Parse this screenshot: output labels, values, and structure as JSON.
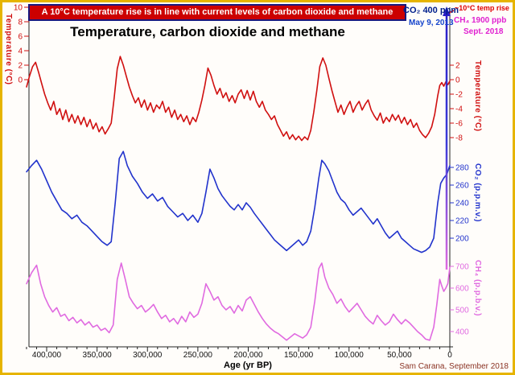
{
  "banner": {
    "text": "A 10°C temperature rise is in line with current levels of carbon dioxide and methane"
  },
  "title": "Temperature, carbon dioxide and methane",
  "annotations": {
    "co2_current": "CO₂ 400 ppm",
    "co2_date": "May 9, 2013",
    "temp_rise": "~10°C temp rise",
    "ch4_current": "CH₄ 1900 ppb",
    "ch4_date": "Sept. 2018",
    "credit": "Sam Carana, September 2018"
  },
  "colors": {
    "banner_bg": "#cc0000",
    "banner_border": "#18187e",
    "temperature": "#d01010",
    "co2": "#2233cc",
    "ch4": "#e06ae0",
    "axis": "#222222",
    "credit": "#8a3324",
    "arrow_top": "#2a1ec8",
    "arrow_bottom": "#e06ae0",
    "frame": "#e6b400"
  },
  "chart_data": {
    "type": "line",
    "title": "Temperature, carbon dioxide and methane",
    "x_axis": {
      "label": "Age (yr BP)",
      "unit": "yr BP",
      "range_kyr": [
        420,
        0
      ],
      "reversed": true,
      "tick_values_kyr": [
        400,
        350,
        300,
        250,
        200,
        150,
        100,
        50,
        0
      ],
      "tick_labels": [
        "400,000",
        "350,000",
        "300,000",
        "250,000",
        "200,000",
        "150,000",
        "100,000",
        "50,000",
        "0"
      ]
    },
    "left_axis": {
      "label": "Temperature (°C)",
      "ticks": [
        10,
        8,
        6,
        4,
        2,
        0
      ],
      "note": "scale for projected 10°C rise arrow"
    },
    "arrow_annotation": {
      "label": "~10°C temp rise",
      "points_to_value_c": 10
    },
    "panels": [
      {
        "name": "temperature",
        "ylabel": "Temperature (°C)",
        "color": "#d01010",
        "ylim": [
          -9.5,
          3.5
        ],
        "yticks": [
          2,
          0,
          -2,
          -4,
          -6,
          -8
        ],
        "x_kyr": [
          420,
          417,
          414,
          411,
          408,
          405,
          402,
          399,
          396,
          393,
          390,
          387,
          384,
          381,
          378,
          375,
          372,
          369,
          366,
          363,
          360,
          357,
          354,
          351,
          348,
          345,
          342,
          339,
          336,
          333,
          330,
          327,
          324,
          321,
          318,
          315,
          312,
          309,
          306,
          303,
          300,
          297,
          294,
          291,
          288,
          285,
          282,
          279,
          276,
          273,
          270,
          267,
          264,
          261,
          258,
          255,
          252,
          249,
          246,
          243,
          240,
          237,
          234,
          231,
          228,
          225,
          222,
          219,
          216,
          213,
          210,
          207,
          204,
          201,
          198,
          195,
          192,
          189,
          186,
          183,
          180,
          177,
          174,
          171,
          168,
          165,
          162,
          159,
          156,
          153,
          150,
          147,
          144,
          141,
          138,
          135,
          132,
          129,
          126,
          123,
          120,
          117,
          114,
          111,
          108,
          105,
          102,
          99,
          96,
          93,
          90,
          87,
          84,
          81,
          78,
          75,
          72,
          69,
          66,
          63,
          60,
          57,
          54,
          51,
          48,
          45,
          42,
          39,
          36,
          33,
          30,
          27,
          24,
          21,
          18,
          15,
          12,
          10,
          8,
          6,
          4,
          2,
          0
        ],
        "values": [
          -1,
          0.5,
          1.8,
          2.4,
          1,
          -0.5,
          -2,
          -3.2,
          -4.2,
          -3,
          -4.8,
          -4,
          -5.5,
          -4.2,
          -5.8,
          -4.8,
          -6,
          -5,
          -6.2,
          -5.2,
          -6.5,
          -5.5,
          -6.8,
          -6,
          -7.2,
          -6.5,
          -7.5,
          -6.8,
          -6,
          -2.5,
          1.5,
          3.2,
          2,
          0.5,
          -1,
          -2.2,
          -3.2,
          -2.5,
          -3.8,
          -2.8,
          -4.2,
          -3.2,
          -4.5,
          -3.5,
          -4,
          -3,
          -4.5,
          -3.8,
          -5.2,
          -4.2,
          -5.5,
          -4.8,
          -5.8,
          -5,
          -6.2,
          -5.2,
          -5.8,
          -4.5,
          -2.8,
          -0.8,
          1.6,
          0.6,
          -0.8,
          -2,
          -1.2,
          -2.5,
          -1.8,
          -3,
          -2.2,
          -3.2,
          -2,
          -1.4,
          -2.6,
          -1.5,
          -2.8,
          -1.6,
          -3,
          -3.8,
          -3,
          -4.2,
          -4.8,
          -5.5,
          -5,
          -6.2,
          -7,
          -7.8,
          -7.2,
          -8.2,
          -7.6,
          -8.3,
          -7.8,
          -8.4,
          -7.9,
          -8.3,
          -7,
          -4.5,
          -1.5,
          1.8,
          3,
          2,
          0.2,
          -1.5,
          -3,
          -4.5,
          -3.5,
          -4.8,
          -3.8,
          -3,
          -4.5,
          -3.6,
          -3,
          -4.2,
          -3.4,
          -2.8,
          -4.2,
          -5,
          -5.6,
          -4.6,
          -6,
          -5.2,
          -5.8,
          -4.8,
          -5.6,
          -4.9,
          -6,
          -5.2,
          -6.2,
          -5.5,
          -6.6,
          -6,
          -7,
          -7.6,
          -8,
          -7.4,
          -6.5,
          -4.8,
          -2.2,
          -0.8,
          -0.4,
          -0.9,
          -0.3,
          -0.7,
          -0.2
        ]
      },
      {
        "name": "co2",
        "ylabel": "CO₂ (p.p.m.v.)",
        "color": "#2233cc",
        "ylim": [
          175,
          305
        ],
        "yticks": [
          280,
          260,
          240,
          220,
          200
        ],
        "x_kyr": [
          420,
          415,
          410,
          405,
          400,
          395,
          390,
          385,
          380,
          375,
          370,
          365,
          360,
          355,
          350,
          345,
          340,
          336,
          332,
          328,
          324,
          320,
          315,
          310,
          305,
          300,
          295,
          290,
          285,
          280,
          275,
          270,
          265,
          260,
          255,
          250,
          246,
          242,
          238,
          234,
          230,
          226,
          222,
          218,
          214,
          210,
          206,
          202,
          198,
          194,
          190,
          186,
          182,
          178,
          174,
          170,
          166,
          162,
          158,
          154,
          150,
          146,
          142,
          138,
          134,
          130,
          127,
          124,
          120,
          116,
          112,
          108,
          104,
          100,
          96,
          92,
          88,
          84,
          80,
          76,
          72,
          68,
          64,
          60,
          56,
          52,
          48,
          44,
          40,
          36,
          32,
          28,
          24,
          20,
          16,
          12,
          9,
          6,
          3,
          0
        ],
        "values": [
          275,
          282,
          288,
          278,
          265,
          252,
          242,
          232,
          228,
          222,
          226,
          218,
          214,
          208,
          202,
          196,
          192,
          196,
          240,
          290,
          298,
          282,
          270,
          262,
          252,
          245,
          250,
          242,
          246,
          236,
          230,
          224,
          228,
          220,
          226,
          218,
          228,
          252,
          278,
          268,
          256,
          248,
          242,
          236,
          232,
          238,
          232,
          240,
          235,
          228,
          222,
          216,
          210,
          204,
          198,
          194,
          190,
          186,
          190,
          194,
          198,
          192,
          196,
          208,
          235,
          268,
          288,
          284,
          276,
          264,
          252,
          244,
          240,
          232,
          226,
          230,
          234,
          228,
          222,
          216,
          222,
          214,
          206,
          200,
          204,
          208,
          200,
          196,
          192,
          188,
          186,
          184,
          186,
          190,
          200,
          240,
          262,
          268,
          272,
          282
        ]
      },
      {
        "name": "ch4",
        "ylabel": "CH₄ (p.p.b.v.)",
        "color": "#e06ae0",
        "ylim": [
          340,
          760
        ],
        "yticks": [
          700,
          600,
          500,
          400
        ],
        "x_kyr": [
          420,
          415,
          410,
          406,
          402,
          398,
          394,
          390,
          386,
          382,
          378,
          374,
          370,
          366,
          362,
          358,
          354,
          350,
          346,
          342,
          338,
          334,
          330,
          326,
          322,
          318,
          314,
          310,
          306,
          302,
          298,
          294,
          290,
          286,
          282,
          278,
          274,
          270,
          266,
          262,
          258,
          254,
          250,
          246,
          242,
          238,
          234,
          230,
          226,
          222,
          218,
          214,
          210,
          206,
          202,
          198,
          194,
          190,
          186,
          182,
          178,
          174,
          170,
          166,
          162,
          158,
          154,
          150,
          146,
          142,
          138,
          134,
          130,
          127,
          124,
          120,
          116,
          112,
          108,
          104,
          100,
          96,
          92,
          88,
          84,
          80,
          76,
          72,
          68,
          64,
          60,
          56,
          52,
          48,
          44,
          40,
          36,
          32,
          28,
          24,
          20,
          16,
          13,
          10,
          8,
          6,
          4,
          2,
          0
        ],
        "values": [
          620,
          670,
          705,
          620,
          560,
          520,
          490,
          510,
          470,
          480,
          450,
          465,
          440,
          455,
          430,
          445,
          420,
          430,
          405,
          415,
          395,
          430,
          640,
          715,
          640,
          560,
          530,
          505,
          520,
          490,
          505,
          525,
          490,
          460,
          475,
          445,
          460,
          435,
          470,
          445,
          490,
          465,
          480,
          530,
          620,
          585,
          545,
          560,
          520,
          500,
          515,
          485,
          520,
          495,
          545,
          560,
          525,
          490,
          460,
          435,
          415,
          400,
          390,
          375,
          360,
          375,
          390,
          380,
          370,
          385,
          420,
          540,
          690,
          715,
          650,
          600,
          570,
          530,
          550,
          515,
          490,
          510,
          530,
          500,
          470,
          450,
          435,
          475,
          450,
          430,
          445,
          480,
          455,
          435,
          455,
          440,
          420,
          400,
          385,
          365,
          360,
          420,
          520,
          640,
          610,
          585,
          600,
          620,
          695
        ]
      }
    ]
  }
}
